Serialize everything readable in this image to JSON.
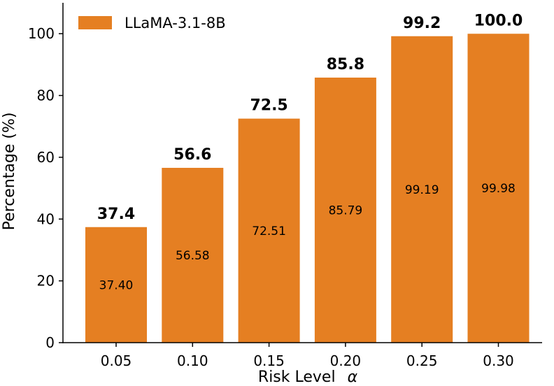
{
  "chart_data": {
    "type": "bar",
    "categories": [
      "0.05",
      "0.10",
      "0.15",
      "0.20",
      "0.25",
      "0.30"
    ],
    "series": [
      {
        "name": "LLaMA-3.1-8B",
        "values": [
          37.4,
          56.58,
          72.51,
          85.79,
          99.19,
          99.98
        ],
        "top_labels": [
          "37.4",
          "56.6",
          "72.5",
          "85.8",
          "99.2",
          "100.0"
        ],
        "inner_labels": [
          "37.40",
          "56.58",
          "72.51",
          "85.79",
          "99.19",
          "99.98"
        ]
      }
    ],
    "xlabel": "Risk Level",
    "xlabel_symbol": "α",
    "ylabel": "Percentage (%)",
    "ylim": [
      0,
      110
    ],
    "yticks": [
      0,
      20,
      40,
      60,
      80,
      100
    ],
    "grid": false,
    "legend": "top-left",
    "colors": {
      "bar": "#e57f22",
      "axis": "#000000"
    }
  }
}
